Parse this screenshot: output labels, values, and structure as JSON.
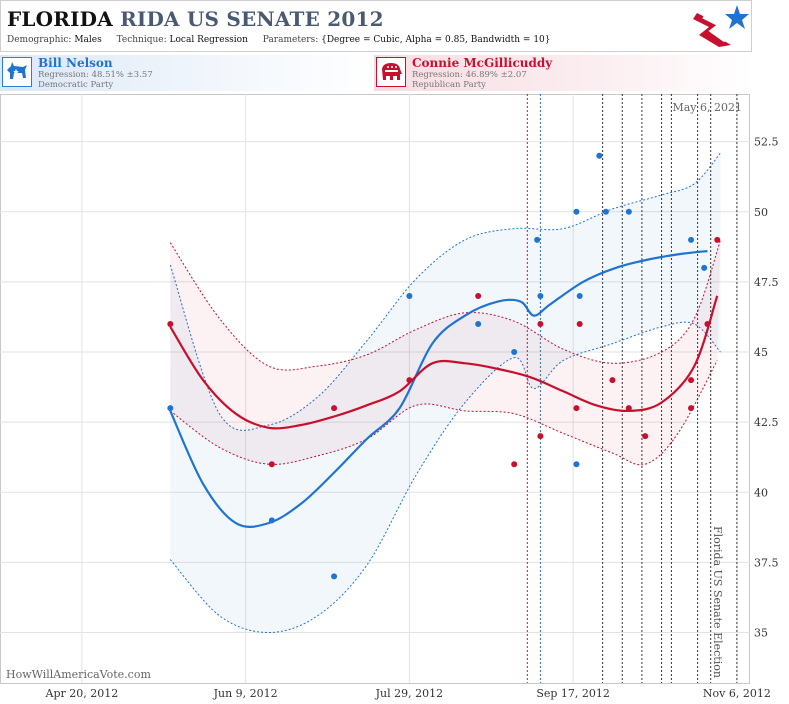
{
  "header": {
    "state": "FLORIDA",
    "race": "RIDA US SENATE",
    "year": "2012",
    "demographic_label": "Demographic:",
    "demographic_value": "Males",
    "technique_label": "Technique:",
    "technique_value": "Local Regression",
    "parameters_label": "Parameters:",
    "parameters_value": "{Degree = Cubic, Alpha = 0.85, Bandwidth = 10}"
  },
  "candidates": {
    "democrat": {
      "name": "Bill Nelson",
      "regression": "Regression: 48.51% ±3.57",
      "party": "Democratic Party",
      "icon": "donkey-icon",
      "color": "#1f74d2"
    },
    "republican": {
      "name": "Connie McGillicuddy",
      "regression": "Regression: 46.89% ±2.07",
      "party": "Republican Party",
      "icon": "elephant-icon",
      "color": "#c8102e"
    }
  },
  "watermark": "HowWillAmericaVote.com",
  "chart_data": {
    "type": "scatter",
    "date_label": "May 6, 2021",
    "election_label": "Florida US Senate Election",
    "x_tick_labels": [
      "Apr 20, 2012",
      "Jun 9, 2012",
      "Jul 29, 2012",
      "Sep 17, 2012",
      "Nov 6, 2012"
    ],
    "x_ticks": [
      "2012-04-20",
      "2012-06-09",
      "2012-07-29",
      "2012-09-17",
      "2012-11-06"
    ],
    "x_range": [
      "2012-03-26",
      "2012-11-10"
    ],
    "y_ticks": [
      35,
      37.5,
      40,
      42.5,
      45,
      47.5,
      50,
      52.5
    ],
    "y_tick_labels": [
      "35",
      "37.5",
      "40",
      "42.5",
      "45",
      "47.5",
      "50",
      "52.5"
    ],
    "y_range": [
      33.2,
      54.2
    ],
    "grid": true,
    "series": [
      {
        "name": "Bill Nelson",
        "color": "#1f74d2",
        "points": [
          [
            "2012-05-17",
            43
          ],
          [
            "2012-06-17",
            39
          ],
          [
            "2012-07-06",
            37
          ],
          [
            "2012-07-29",
            47
          ],
          [
            "2012-08-19",
            46
          ],
          [
            "2012-08-30",
            45
          ],
          [
            "2012-09-06",
            49
          ],
          [
            "2012-09-07",
            47
          ],
          [
            "2012-09-18",
            50
          ],
          [
            "2012-09-18",
            41
          ],
          [
            "2012-09-19",
            47
          ],
          [
            "2012-09-25",
            52
          ],
          [
            "2012-09-27",
            50
          ],
          [
            "2012-10-04",
            50
          ],
          [
            "2012-10-23",
            49
          ],
          [
            "2012-10-27",
            48
          ]
        ],
        "trend": [
          [
            "2012-05-17",
            42.9
          ],
          [
            "2012-05-27",
            40.3
          ],
          [
            "2012-06-06",
            38.9
          ],
          [
            "2012-06-16",
            38.9
          ],
          [
            "2012-06-26",
            39.6
          ],
          [
            "2012-07-06",
            40.7
          ],
          [
            "2012-07-16",
            41.9
          ],
          [
            "2012-07-26",
            43.0
          ],
          [
            "2012-08-05",
            45.3
          ],
          [
            "2012-08-15",
            46.3
          ],
          [
            "2012-08-25",
            46.8
          ],
          [
            "2012-09-01",
            46.8
          ],
          [
            "2012-09-05",
            46.3
          ],
          [
            "2012-09-10",
            46.7
          ],
          [
            "2012-09-20",
            47.5
          ],
          [
            "2012-09-30",
            48.0
          ],
          [
            "2012-10-10",
            48.3
          ],
          [
            "2012-10-20",
            48.5
          ],
          [
            "2012-10-28",
            48.6
          ]
        ],
        "upper": [
          [
            "2012-05-17",
            48.1
          ],
          [
            "2012-06-01",
            42.8
          ],
          [
            "2012-06-16",
            42.4
          ],
          [
            "2012-07-01",
            43.4
          ],
          [
            "2012-07-16",
            45.4
          ],
          [
            "2012-07-31",
            47.6
          ],
          [
            "2012-08-15",
            49.0
          ],
          [
            "2012-08-30",
            49.4
          ],
          [
            "2012-09-14",
            49.4
          ],
          [
            "2012-09-29",
            50.1
          ],
          [
            "2012-10-14",
            50.6
          ],
          [
            "2012-10-24",
            51.0
          ],
          [
            "2012-11-01",
            52.1
          ]
        ],
        "lower": [
          [
            "2012-05-17",
            37.6
          ],
          [
            "2012-06-01",
            35.6
          ],
          [
            "2012-06-16",
            35.0
          ],
          [
            "2012-07-01",
            35.6
          ],
          [
            "2012-07-16",
            37.4
          ],
          [
            "2012-07-31",
            40.6
          ],
          [
            "2012-08-15",
            43.2
          ],
          [
            "2012-08-30",
            44.8
          ],
          [
            "2012-09-05",
            43.7
          ],
          [
            "2012-09-14",
            44.7
          ],
          [
            "2012-09-29",
            45.3
          ],
          [
            "2012-10-14",
            45.9
          ],
          [
            "2012-10-24",
            46.0
          ],
          [
            "2012-11-01",
            45.0
          ]
        ]
      },
      {
        "name": "Connie McGillicuddy",
        "color": "#c8102e",
        "points": [
          [
            "2012-05-17",
            46
          ],
          [
            "2012-06-17",
            41
          ],
          [
            "2012-07-06",
            43
          ],
          [
            "2012-07-29",
            44
          ],
          [
            "2012-08-19",
            47
          ],
          [
            "2012-08-30",
            41
          ],
          [
            "2012-09-07",
            42
          ],
          [
            "2012-09-07",
            46
          ],
          [
            "2012-09-18",
            43
          ],
          [
            "2012-09-19",
            46
          ],
          [
            "2012-09-29",
            44
          ],
          [
            "2012-10-04",
            43
          ],
          [
            "2012-10-09",
            42
          ],
          [
            "2012-10-23",
            44
          ],
          [
            "2012-10-23",
            43
          ],
          [
            "2012-10-28",
            46
          ],
          [
            "2012-10-31",
            49
          ]
        ],
        "trend": [
          [
            "2012-05-17",
            45.9
          ],
          [
            "2012-05-27",
            44.0
          ],
          [
            "2012-06-06",
            42.8
          ],
          [
            "2012-06-16",
            42.3
          ],
          [
            "2012-06-26",
            42.4
          ],
          [
            "2012-07-06",
            42.7
          ],
          [
            "2012-07-16",
            43.1
          ],
          [
            "2012-07-26",
            43.6
          ],
          [
            "2012-08-05",
            44.6
          ],
          [
            "2012-08-15",
            44.6
          ],
          [
            "2012-08-25",
            44.4
          ],
          [
            "2012-09-04",
            44.1
          ],
          [
            "2012-09-14",
            43.6
          ],
          [
            "2012-09-24",
            43.1
          ],
          [
            "2012-10-04",
            42.9
          ],
          [
            "2012-10-14",
            43.2
          ],
          [
            "2012-10-24",
            44.5
          ],
          [
            "2012-10-31",
            47.0
          ]
        ],
        "upper": [
          [
            "2012-05-17",
            48.9
          ],
          [
            "2012-06-01",
            46.2
          ],
          [
            "2012-06-16",
            44.5
          ],
          [
            "2012-07-01",
            44.5
          ],
          [
            "2012-07-16",
            44.9
          ],
          [
            "2012-07-31",
            45.8
          ],
          [
            "2012-08-15",
            46.4
          ],
          [
            "2012-08-30",
            46.1
          ],
          [
            "2012-09-14",
            45.1
          ],
          [
            "2012-09-29",
            44.6
          ],
          [
            "2012-10-14",
            45.0
          ],
          [
            "2012-10-24",
            46.2
          ],
          [
            "2012-11-01",
            49.0
          ]
        ],
        "lower": [
          [
            "2012-05-17",
            42.9
          ],
          [
            "2012-06-01",
            41.6
          ],
          [
            "2012-06-16",
            41.0
          ],
          [
            "2012-07-01",
            41.3
          ],
          [
            "2012-07-16",
            41.9
          ],
          [
            "2012-07-31",
            43.1
          ],
          [
            "2012-08-15",
            42.9
          ],
          [
            "2012-08-30",
            42.8
          ],
          [
            "2012-09-14",
            42.1
          ],
          [
            "2012-09-29",
            41.4
          ],
          [
            "2012-10-09",
            41.0
          ],
          [
            "2012-10-19",
            42.1
          ],
          [
            "2012-10-31",
            44.7
          ]
        ]
      }
    ],
    "event_lines": [
      {
        "date": "2012-09-03",
        "color": "#c8102e"
      },
      {
        "date": "2012-09-07",
        "color": "#1f74d2"
      },
      {
        "date": "2012-09-26",
        "color": "#333333"
      },
      {
        "date": "2012-10-02",
        "color": "#333333"
      },
      {
        "date": "2012-10-08",
        "color": "#333333"
      },
      {
        "date": "2012-10-14",
        "color": "#333333"
      },
      {
        "date": "2012-10-17",
        "color": "#333333"
      },
      {
        "date": "2012-10-25",
        "color": "#333333"
      },
      {
        "date": "2012-10-29",
        "color": "#333333"
      },
      {
        "date": "2012-11-06",
        "color": "#333333"
      }
    ]
  }
}
